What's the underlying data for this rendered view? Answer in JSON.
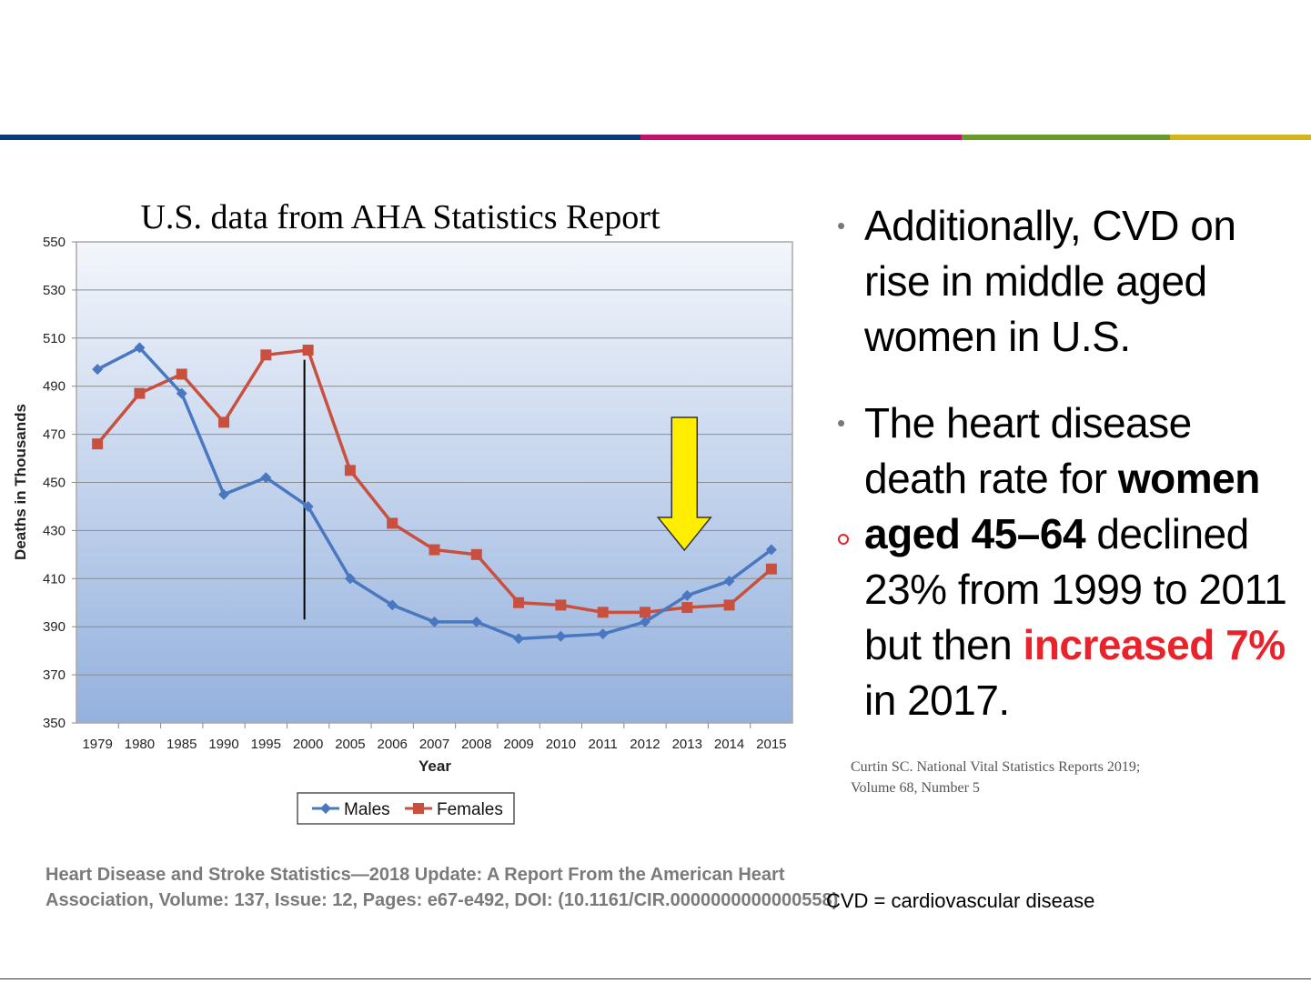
{
  "header": {
    "color_bar": [
      "#0d3a7a",
      "#c2126e",
      "#6a9a2c",
      "#d2b51c"
    ]
  },
  "chart_data": {
    "type": "line",
    "title": "U.S. data from AHA Statistics Report",
    "xlabel": "Year",
    "ylabel": "Deaths in Thousands",
    "categories": [
      "1979",
      "1980",
      "1985",
      "1990",
      "1995",
      "2000",
      "2005",
      "2006",
      "2007",
      "2008",
      "2009",
      "2010",
      "2011",
      "2012",
      "2013",
      "2014",
      "2015"
    ],
    "ylim": [
      350,
      550
    ],
    "yticks": [
      350,
      370,
      390,
      410,
      430,
      450,
      470,
      490,
      510,
      530,
      550
    ],
    "grid": true,
    "legend_position": "bottom",
    "series": [
      {
        "name": "Males",
        "color": "#4a78c0",
        "marker": "diamond",
        "values": [
          497,
          506,
          487,
          445,
          452,
          440,
          410,
          399,
          392,
          392,
          385,
          386,
          387,
          392,
          403,
          409,
          422
        ]
      },
      {
        "name": "Females",
        "color": "#c9503f",
        "marker": "square",
        "values": [
          466,
          487,
          495,
          475,
          503,
          505,
          455,
          433,
          422,
          420,
          400,
          399,
          396,
          396,
          398,
          399,
          414
        ]
      }
    ],
    "annotations": {
      "vertical_line_at": "2000",
      "arrow_at": "2013",
      "arrow_color": "#ffee00"
    }
  },
  "bullets": [
    {
      "text": "Additionally, CVD on rise in middle aged women in U.S."
    },
    {
      "parts": [
        {
          "text": "The heart disease death rate for "
        },
        {
          "text": "women aged 45–64",
          "style": "bold"
        },
        {
          "text": " declined 23% from 1999 to 2011 but then "
        },
        {
          "text": "increased 7%",
          "style": "red-bold"
        },
        {
          "text": " in 2017."
        }
      ]
    }
  ],
  "bullet_glyph": "•",
  "citations": {
    "curtin_line1": "Curtin SC. National Vital Statistics Reports 2019;",
    "curtin_line2": "Volume 68, Number 5",
    "aha_line1": "Heart Disease and Stroke Statistics—2018 Update: A Report From the American Heart",
    "aha_line2": "Association, Volume: 137, Issue: 12, Pages: e67-e492, DOI: (10.1161/CIR.0000000000000558)",
    "cvd_definition": "CVD = cardiovascular disease"
  }
}
